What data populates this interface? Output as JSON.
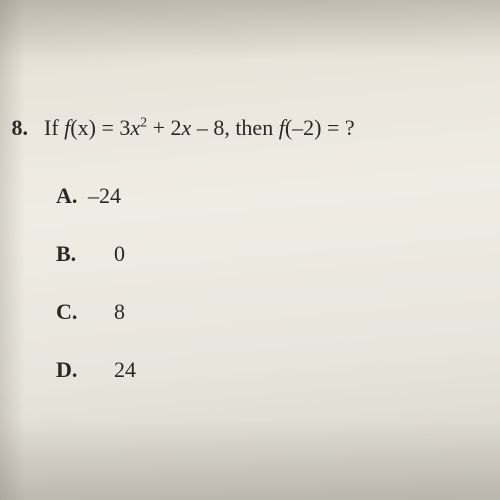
{
  "question": {
    "number": "8.",
    "prefix": "If ",
    "func_def_lhs_f": "f",
    "func_def_lhs_x": "(x)",
    "equals1": " = ",
    "term1_coef": "3",
    "term1_var": "x",
    "term1_exp": "2",
    "plus": " + ",
    "term2_coef": "2",
    "term2_var": "x",
    "term3": " – 8, then ",
    "func_eval_f": "f",
    "func_eval_arg": "(–2)",
    "equals2": " = ?"
  },
  "choices": [
    {
      "label": "A.",
      "value": "–24",
      "indent_class": "neg-val"
    },
    {
      "label": "B.",
      "value": "0",
      "indent_class": "pos-val"
    },
    {
      "label": "C.",
      "value": "8",
      "indent_class": "pos-val"
    },
    {
      "label": "D.",
      "value": "24",
      "indent_class": "pos-val"
    }
  ],
  "styling": {
    "font_family": "Times New Roman",
    "question_fontsize": 22,
    "choice_fontsize": 22,
    "text_color": "#2a2826",
    "background_gradient": [
      "#d8d3c8",
      "#e8e4da",
      "#efece4",
      "#e8e5dd",
      "#d5d2ca"
    ],
    "choice_spacing": 32,
    "question_top_padding": 115
  }
}
